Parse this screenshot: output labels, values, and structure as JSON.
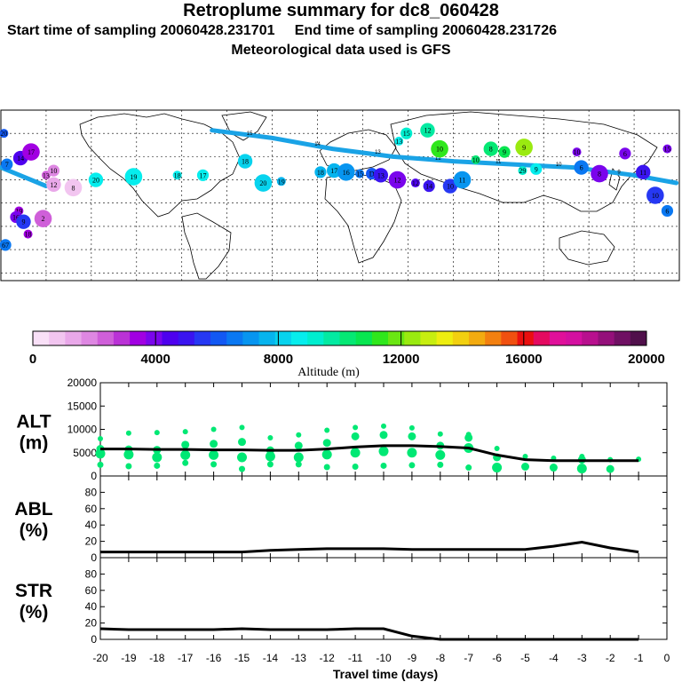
{
  "header": {
    "title": "Retroplume summary for dc8_060428",
    "start_label": "Start time of sampling 20060428.231701",
    "end_label": "End time of sampling 20060428.231726",
    "met_label": "Meteorological data used is GFS"
  },
  "map": {
    "track_color": "#1aa3e6",
    "markers": [
      {
        "label": "20",
        "lon": -178,
        "lat": 60,
        "alt": 6200
      },
      {
        "label": "7",
        "lon": -176,
        "lat": 40,
        "alt": 6500
      },
      {
        "label": "14",
        "lon": -167,
        "lat": 44,
        "alt": 4500
      },
      {
        "label": "17",
        "lon": -160,
        "lat": 48,
        "alt": 3200
      },
      {
        "label": "13",
        "lon": -150,
        "lat": 33,
        "alt": 2400
      },
      {
        "label": "10",
        "lon": -145,
        "lat": 36,
        "alt": 1600
      },
      {
        "label": "12",
        "lon": -145,
        "lat": 27,
        "alt": 1200
      },
      {
        "label": "8",
        "lon": -132,
        "lat": 25,
        "alt": 1000
      },
      {
        "label": "19",
        "lon": -168,
        "lat": 10,
        "alt": 3600
      },
      {
        "label": "16",
        "lon": -170,
        "lat": 6,
        "alt": 4200
      },
      {
        "label": "9",
        "lon": -165,
        "lat": 3,
        "alt": 5500
      },
      {
        "label": "2",
        "lon": -152,
        "lat": 5,
        "alt": 2500
      },
      {
        "label": "18",
        "lon": -162,
        "lat": -5,
        "alt": 3500
      },
      {
        "label": "67",
        "lon": -177,
        "lat": -12,
        "alt": 6500
      },
      {
        "label": "20",
        "lon": -117,
        "lat": 30,
        "alt": 8500
      },
      {
        "label": "19",
        "lon": -92,
        "lat": 32,
        "alt": 8600
      },
      {
        "label": "18",
        "lon": -63,
        "lat": 33,
        "alt": 8700
      },
      {
        "label": "17",
        "lon": -46,
        "lat": 33,
        "alt": 8800
      },
      {
        "label": "18",
        "lon": -18,
        "lat": 42,
        "alt": 8000
      },
      {
        "label": "20",
        "lon": -6,
        "lat": 28,
        "alt": 7900
      },
      {
        "label": "19",
        "lon": 6,
        "lat": 29,
        "alt": 7800
      },
      {
        "label": "18",
        "lon": 32,
        "lat": 35,
        "alt": 7600
      },
      {
        "label": "17",
        "lon": 41,
        "lat": 36,
        "alt": 7500
      },
      {
        "label": "16",
        "lon": 49,
        "lat": 35,
        "alt": 7000
      },
      {
        "label": "15",
        "lon": 58,
        "lat": 34,
        "alt": 6500
      },
      {
        "label": "D",
        "lon": 66,
        "lat": 34,
        "alt": 6000
      },
      {
        "label": "13",
        "lon": 72,
        "lat": 33,
        "alt": 5000
      },
      {
        "label": "12",
        "lon": 83,
        "lat": 30,
        "alt": 4000
      },
      {
        "label": "12",
        "lon": 95,
        "lat": 28,
        "alt": 4500
      },
      {
        "label": "14",
        "lon": 104,
        "lat": 26,
        "alt": 4800
      },
      {
        "label": "10",
        "lon": 118,
        "lat": 26,
        "alt": 5500
      },
      {
        "label": "11",
        "lon": 126,
        "lat": 30,
        "alt": 7000
      },
      {
        "label": "10",
        "lon": 135,
        "lat": 43,
        "alt": 10500
      },
      {
        "label": "9",
        "lon": 154,
        "lat": 48,
        "alt": 11000
      },
      {
        "label": "8",
        "lon": 145,
        "lat": 50,
        "alt": 10500
      },
      {
        "label": "10",
        "lon": 111,
        "lat": 50,
        "alt": 11200
      },
      {
        "label": "13",
        "lon": 84,
        "lat": 55,
        "alt": 8500
      },
      {
        "label": "15",
        "lon": 89,
        "lat": 60,
        "alt": 9000
      },
      {
        "label": "12",
        "lon": 103,
        "lat": 62,
        "alt": 9500
      },
      {
        "label": "9",
        "lon": 167,
        "lat": 51,
        "alt": 12500
      },
      {
        "label": "29",
        "lon": 166,
        "lat": 36,
        "alt": 9200
      },
      {
        "label": "9",
        "lon": 175,
        "lat": 37,
        "alt": 8600
      },
      {
        "label": "6",
        "lon": 205,
        "lat": 38,
        "alt": 6600
      },
      {
        "label": "8",
        "lon": 217,
        "lat": 34,
        "alt": 4000
      },
      {
        "label": "10",
        "lon": 202,
        "lat": 48,
        "alt": 4200
      },
      {
        "label": "6",
        "lon": 234,
        "lat": 47,
        "alt": 4000
      },
      {
        "label": "11",
        "lon": 246,
        "lat": 35,
        "alt": 5200
      },
      {
        "label": "10",
        "lon": 254,
        "lat": 20,
        "alt": 5600
      },
      {
        "label": "15",
        "lon": 262,
        "lat": 50,
        "alt": 4100
      },
      {
        "label": "6",
        "lon": 262,
        "lat": 10,
        "alt": 6800
      }
    ]
  },
  "colorbar": {
    "colors": [
      "#f9e0f7",
      "#f2c5f0",
      "#e9a8e9",
      "#de87e2",
      "#cf5fd9",
      "#ba32d6",
      "#a100e2",
      "#7a05ec",
      "#4e00ee",
      "#3a14f0",
      "#2638f3",
      "#1258f3",
      "#0a78f2",
      "#0795f0",
      "#06b4ee",
      "#07d3ee",
      "#06eded",
      "#00eecf",
      "#03eaa2",
      "#05e874",
      "#08e650",
      "#2fe71c",
      "#6ae612",
      "#9aea10",
      "#c7ee10",
      "#eeee10",
      "#f2d010",
      "#f3ab10",
      "#f38010",
      "#f05010",
      "#ea1010",
      "#e40a60",
      "#e0109a",
      "#d410a0",
      "#b8108e",
      "#94107a",
      "#6f1063",
      "#50104b"
    ],
    "labels": [
      "0",
      "4000",
      "8000",
      "12000",
      "16000",
      "20000"
    ],
    "axis_label": "Altitude (m)"
  },
  "chart_data": [
    {
      "type": "line",
      "name": "ALT",
      "ylabel": "ALT",
      "yunit": "(m)",
      "ylim": [
        0,
        20000
      ],
      "yticks": [
        "20000",
        "15000",
        "10000",
        "5000",
        "0"
      ],
      "x": [
        -20,
        -19,
        -18,
        -17,
        -16,
        -15,
        -14,
        -13,
        -12,
        -11,
        -10,
        -9,
        -8,
        -7,
        -6,
        -5,
        -4,
        -3,
        -2,
        -1
      ],
      "values": [
        5800,
        5800,
        5700,
        5700,
        5600,
        5600,
        5500,
        5500,
        5800,
        6200,
        6500,
        6500,
        6300,
        6000,
        4500,
        3500,
        3300,
        3300,
        3300,
        3300
      ],
      "scatter": [
        {
          "x": -20,
          "ys": [
            8000,
            5800,
            4800,
            2400
          ]
        },
        {
          "x": -19,
          "ys": [
            9200,
            5700,
            4600,
            2100
          ]
        },
        {
          "x": -18,
          "ys": [
            9300,
            5600,
            4000,
            2200
          ]
        },
        {
          "x": -17,
          "ys": [
            9500,
            6700,
            4500,
            2800
          ]
        },
        {
          "x": -16,
          "ys": [
            10000,
            6900,
            4500,
            2500
          ]
        },
        {
          "x": -15,
          "ys": [
            10400,
            7300,
            4000,
            1500
          ]
        },
        {
          "x": -14,
          "ys": [
            8200,
            5500,
            4200,
            2500
          ]
        },
        {
          "x": -13,
          "ys": [
            8800,
            6500,
            4000,
            2500
          ]
        },
        {
          "x": -12,
          "ys": [
            9800,
            7100,
            4600,
            1900
          ]
        },
        {
          "x": -11,
          "ys": [
            10400,
            8500,
            5000,
            2000
          ]
        },
        {
          "x": -10,
          "ys": [
            10700,
            8800,
            5300,
            2200
          ]
        },
        {
          "x": -9,
          "ys": [
            10300,
            8500,
            5000,
            2300
          ]
        },
        {
          "x": -8,
          "ys": [
            9000,
            6500,
            4500,
            2400
          ]
        },
        {
          "x": -7,
          "ys": [
            8900,
            8200,
            6000,
            1800
          ]
        },
        {
          "x": -6,
          "ys": [
            5900,
            4000,
            1800
          ]
        },
        {
          "x": -5,
          "ys": [
            4200,
            2000
          ]
        },
        {
          "x": -4,
          "ys": [
            3800,
            1800
          ]
        },
        {
          "x": -3,
          "ys": [
            4200,
            3500,
            1600
          ]
        },
        {
          "x": -2,
          "ys": [
            3500,
            1500
          ]
        },
        {
          "x": -1,
          "ys": [
            3600
          ]
        }
      ]
    },
    {
      "type": "line",
      "name": "ABL",
      "ylabel": "ABL",
      "yunit": "(%)",
      "ylim": [
        0,
        100
      ],
      "yticks": [
        "80",
        "60",
        "40",
        "20",
        "0"
      ],
      "x": [
        -20,
        -19,
        -18,
        -17,
        -16,
        -15,
        -14,
        -13,
        -12,
        -11,
        -10,
        -9,
        -8,
        -7,
        -6,
        -5,
        -4,
        -3,
        -2,
        -1
      ],
      "values": [
        7,
        7,
        7,
        7,
        7,
        7,
        9,
        10,
        11,
        11,
        11,
        10,
        10,
        10,
        10,
        10,
        14,
        19,
        12,
        7
      ]
    },
    {
      "type": "line",
      "name": "STR",
      "ylabel": "STR",
      "yunit": "(%)",
      "ylim": [
        0,
        100
      ],
      "yticks": [
        "80",
        "60",
        "40",
        "20",
        "0"
      ],
      "x": [
        -20,
        -19,
        -18,
        -17,
        -16,
        -15,
        -14,
        -13,
        -12,
        -11,
        -10,
        -9,
        -8,
        -7,
        -6,
        -5,
        -4,
        -3,
        -2,
        -1
      ],
      "values": [
        13,
        12,
        12,
        12,
        12,
        13,
        12,
        12,
        12,
        13,
        13,
        4,
        0,
        0,
        0,
        0,
        0,
        0,
        0,
        0
      ]
    }
  ],
  "xaxis": {
    "ticks": [
      "-20",
      "-19",
      "-18",
      "-17",
      "-16",
      "-15",
      "-14",
      "-13",
      "-12",
      "-11",
      "-10",
      "-9",
      "-8",
      "-7",
      "-6",
      "-5",
      "-4",
      "-3",
      "-2",
      "-1",
      "0"
    ],
    "label": "Travel time (days)",
    "series_color": "#00e874"
  }
}
